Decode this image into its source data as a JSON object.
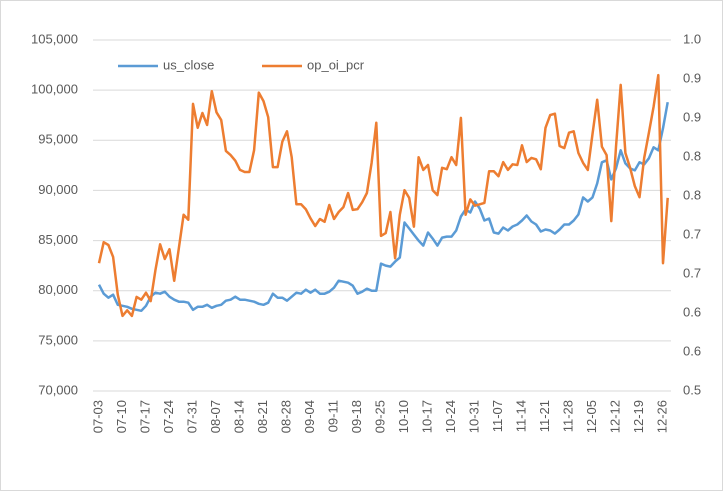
{
  "chart_data": {
    "type": "line",
    "categories": [
      "07-03",
      null,
      null,
      null,
      null,
      "07-10",
      null,
      null,
      null,
      null,
      "07-17",
      null,
      null,
      null,
      null,
      "07-24",
      null,
      null,
      null,
      null,
      "07-31",
      null,
      null,
      null,
      null,
      "08-07",
      null,
      null,
      null,
      null,
      "08-14",
      null,
      null,
      null,
      null,
      "08-21",
      null,
      null,
      null,
      null,
      "08-28",
      null,
      null,
      null,
      null,
      "09-04",
      null,
      null,
      null,
      null,
      "09-11",
      null,
      null,
      null,
      null,
      "09-18",
      null,
      null,
      null,
      null,
      "09-25",
      null,
      null,
      null,
      null,
      "10-10",
      null,
      null,
      null,
      null,
      "10-17",
      null,
      null,
      null,
      null,
      "10-24",
      null,
      null,
      null,
      null,
      "10-31",
      null,
      null,
      null,
      null,
      "11-07",
      null,
      null,
      null,
      null,
      "11-14",
      null,
      null,
      null,
      null,
      "11-21",
      null,
      null,
      null,
      null,
      "11-28",
      null,
      null,
      null,
      null,
      "12-05",
      null,
      null,
      null,
      null,
      "12-12",
      null,
      null,
      null,
      null,
      "12-19",
      null,
      null,
      null,
      null,
      "12-26",
      null
    ],
    "series": [
      {
        "name": "us_close",
        "color": "#5b9bd5",
        "values": [
          80600,
          79700,
          79300,
          79600,
          78600,
          78500,
          78400,
          78200,
          78100,
          78000,
          78500,
          79400,
          79800,
          79700,
          79900,
          79400,
          79100,
          78900,
          78900,
          78800,
          78100,
          78400,
          78400,
          78600,
          78300,
          78500,
          78600,
          79000,
          79100,
          79400,
          79100,
          79100,
          79000,
          78900,
          78700,
          78600,
          78800,
          79700,
          79300,
          79300,
          79000,
          79400,
          79800,
          79700,
          80100,
          79800,
          80100,
          79700,
          79700,
          79900,
          80300,
          81000,
          80900,
          80800,
          80500,
          79700,
          79900,
          80200,
          80000,
          80000,
          82700,
          82500,
          82400,
          82900,
          83300,
          86800,
          86200,
          85600,
          85000,
          84500,
          85800,
          85200,
          84500,
          85300,
          85400,
          85400,
          86000,
          87400,
          88100,
          87800,
          88900,
          88200,
          87000,
          87200,
          85800,
          85700,
          86300,
          86000,
          86400,
          86600,
          87000,
          87500,
          86900,
          86600,
          85900,
          86100,
          86000,
          85700,
          86100,
          86600,
          86600,
          87000,
          87600,
          89300,
          88900,
          89300,
          90700,
          92800,
          93000,
          91100,
          92200,
          94000,
          92700,
          92200,
          92000,
          92800,
          92600,
          93200,
          94300,
          94000,
          96200,
          98800
        ]
      },
      {
        "name": "op_oi_pcr",
        "color": "#ed7d31",
        "axis": "y2",
        "values": [
          0.682,
          0.712,
          0.708,
          0.691,
          0.637,
          0.607,
          0.615,
          0.607,
          0.634,
          0.63,
          0.64,
          0.628,
          0.672,
          0.709,
          0.688,
          0.702,
          0.657,
          0.704,
          0.751,
          0.744,
          0.909,
          0.875,
          0.896,
          0.879,
          0.927,
          0.897,
          0.886,
          0.842,
          0.836,
          0.828,
          0.815,
          0.812,
          0.812,
          0.843,
          0.925,
          0.913,
          0.89,
          0.819,
          0.819,
          0.855,
          0.87,
          0.833,
          0.766,
          0.766,
          0.759,
          0.746,
          0.735,
          0.745,
          0.741,
          0.765,
          0.745,
          0.755,
          0.762,
          0.782,
          0.758,
          0.759,
          0.769,
          0.782,
          0.825,
          0.882,
          0.721,
          0.725,
          0.755,
          0.689,
          0.751,
          0.786,
          0.775,
          0.734,
          0.833,
          0.815,
          0.822,
          0.786,
          0.779,
          0.818,
          0.816,
          0.833,
          0.822,
          0.889,
          0.751,
          0.773,
          0.764,
          0.766,
          0.768,
          0.813,
          0.813,
          0.806,
          0.826,
          0.815,
          0.823,
          0.822,
          0.85,
          0.826,
          0.832,
          0.83,
          0.816,
          0.875,
          0.893,
          0.895,
          0.849,
          0.846,
          0.868,
          0.87,
          0.839,
          0.825,
          0.815,
          0.866,
          0.915,
          0.848,
          0.836,
          0.742,
          0.848,
          0.936,
          0.839,
          0.818,
          0.792,
          0.776,
          0.832,
          0.868,
          0.905,
          0.95,
          0.682,
          0.775
        ]
      }
    ],
    "ylim": [
      70000,
      105000
    ],
    "yticks": [
      {
        "value": 70000,
        "label": "70,000"
      },
      {
        "value": 75000,
        "label": "75,000"
      },
      {
        "value": 80000,
        "label": "80,000"
      },
      {
        "value": 85000,
        "label": "85,000"
      },
      {
        "value": 90000,
        "label": "90,000"
      },
      {
        "value": 95000,
        "label": "95,000"
      },
      {
        "value": 100000,
        "label": "100,000"
      },
      {
        "value": 105000,
        "label": "105,000"
      }
    ],
    "y2lim": [
      0.5,
      1.0
    ],
    "y2ticks": [
      0.5,
      {
        "value": 0.5556,
        "label": "0.6"
      },
      {
        "value": 0.6111,
        "label": "0.6"
      },
      {
        "value": 0.6667,
        "label": "0.7"
      },
      {
        "value": 0.7222,
        "label": "0.7"
      },
      {
        "value": 0.7778,
        "label": "0.8"
      },
      {
        "value": 0.8333,
        "label": "0.8"
      },
      {
        "value": 0.8889,
        "label": "0.9"
      },
      {
        "value": 0.9444,
        "label": "0.9"
      },
      {
        "value": 1.0,
        "label": "1.0"
      }
    ],
    "grid": true,
    "legend": "top-left"
  }
}
